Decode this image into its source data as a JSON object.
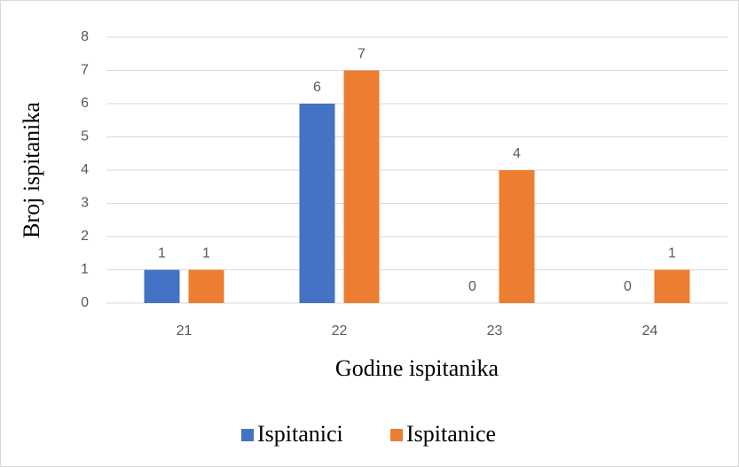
{
  "chart_data": {
    "type": "bar",
    "categories": [
      "21",
      "22",
      "23",
      "24"
    ],
    "series": [
      {
        "name": "Ispitanici",
        "color": "#4472c4",
        "values": [
          1,
          6,
          0,
          0
        ]
      },
      {
        "name": "Ispitanice",
        "color": "#ed7d31",
        "values": [
          1,
          7,
          4,
          1
        ]
      }
    ],
    "xlabel": "Godine ispitanika",
    "ylabel": "Broj ispitanika",
    "ylim": [
      0,
      8
    ],
    "yticks": [
      0,
      1,
      2,
      3,
      4,
      5,
      6,
      7,
      8
    ],
    "grid": true,
    "legend": "bottom"
  }
}
